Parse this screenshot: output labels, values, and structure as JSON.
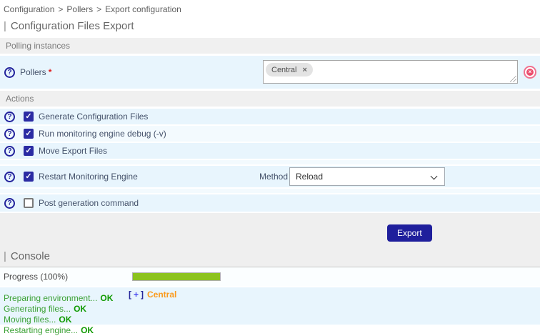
{
  "breadcrumb": {
    "item1": "Configuration",
    "sep1": ">",
    "item2": "Pollers",
    "sep2": ">",
    "item3": "Export configuration"
  },
  "title": {
    "prefix": "|",
    "text": "Configuration Files Export"
  },
  "icons": {
    "help": "?",
    "checkmark": "✓",
    "tag_remove": "×",
    "clear": "×"
  },
  "polling": {
    "section_label": "Polling instances",
    "pollers_label": "Pollers",
    "required": "*",
    "selected_tag": "Central"
  },
  "actions": {
    "section_label": "Actions",
    "rows": [
      {
        "label": "Generate Configuration Files",
        "checked": true
      },
      {
        "label": "Run monitoring engine debug (-v)",
        "checked": true
      },
      {
        "label": "Move Export Files",
        "checked": true
      },
      {
        "label": "Restart Monitoring Engine",
        "checked": true,
        "method_label": "Method",
        "method_value": "Reload"
      },
      {
        "label": "Post generation command",
        "checked": false
      }
    ],
    "export_button": "Export"
  },
  "console": {
    "title_prefix": "|",
    "title": "Console",
    "progress_label": "Progress",
    "progress_suffix": "(100%)",
    "progress_percent": 100,
    "log": [
      {
        "text": "Preparing environment...",
        "status": "OK"
      },
      {
        "text": "Generating files...",
        "status": "OK"
      },
      {
        "text": "Moving files...",
        "status": "OK"
      },
      {
        "text": "Restarting engine...",
        "status": "OK"
      }
    ],
    "tree": {
      "open_bracket": "[",
      "plus": "+",
      "close_bracket": "]",
      "node": "Central"
    }
  },
  "colors": {
    "accent_navy": "#22229c",
    "row_blue": "#e8f5fd",
    "progress_green": "#8cc31d",
    "node_orange": "#fa9a1d",
    "ok_green": "#0f9a00",
    "clear_pink": "#eb4d6d"
  }
}
